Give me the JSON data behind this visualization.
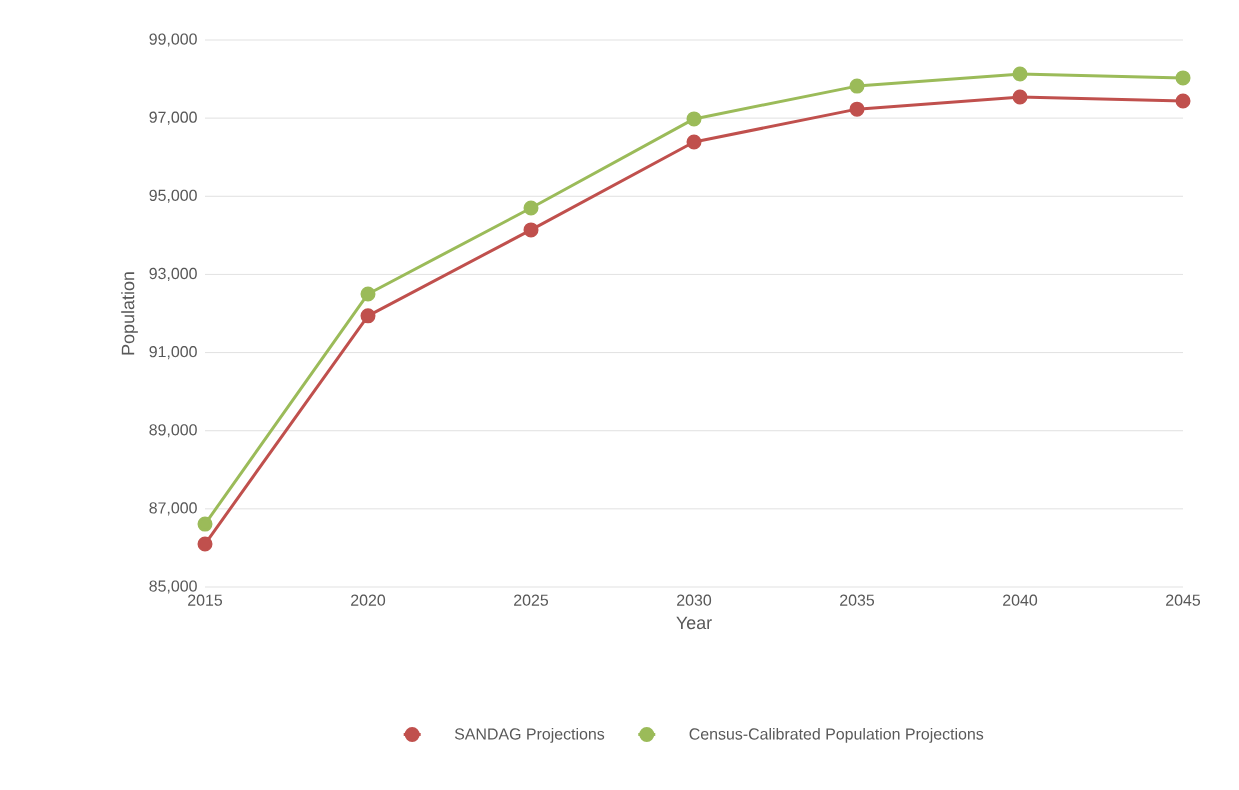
{
  "chart_data": {
    "type": "line",
    "xlabel": "Year",
    "ylabel": "Population",
    "x": [
      2015,
      2020,
      2025,
      2030,
      2035,
      2040,
      2045
    ],
    "series": [
      {
        "name": "SANDAG Projections",
        "color": "#c0504d",
        "values": [
          86100,
          91940,
          94140,
          96390,
          97230,
          97540,
          97440
        ]
      },
      {
        "name": "Census-Calibrated Population Projections",
        "color": "#9bbb59",
        "values": [
          86610,
          92500,
          94700,
          96980,
          97820,
          98130,
          98030
        ]
      }
    ],
    "xlim": [
      2015,
      2045
    ],
    "xticks": [
      2015,
      2020,
      2025,
      2030,
      2035,
      2040,
      2045
    ],
    "ylim": [
      85000,
      99000
    ],
    "yticks": [
      {
        "value": 85000,
        "label": "85,000"
      },
      {
        "value": 87000,
        "label": "87,000"
      },
      {
        "value": 89000,
        "label": "89,000"
      },
      {
        "value": 91000,
        "label": "91,000"
      },
      {
        "value": 93000,
        "label": "93,000"
      },
      {
        "value": 95000,
        "label": "95,000"
      },
      {
        "value": 97000,
        "label": "97,000"
      },
      {
        "value": 99000,
        "label": "99,000"
      }
    ],
    "grid": "y",
    "legend": "bottom",
    "marker": "circle",
    "line_style": "solid"
  }
}
